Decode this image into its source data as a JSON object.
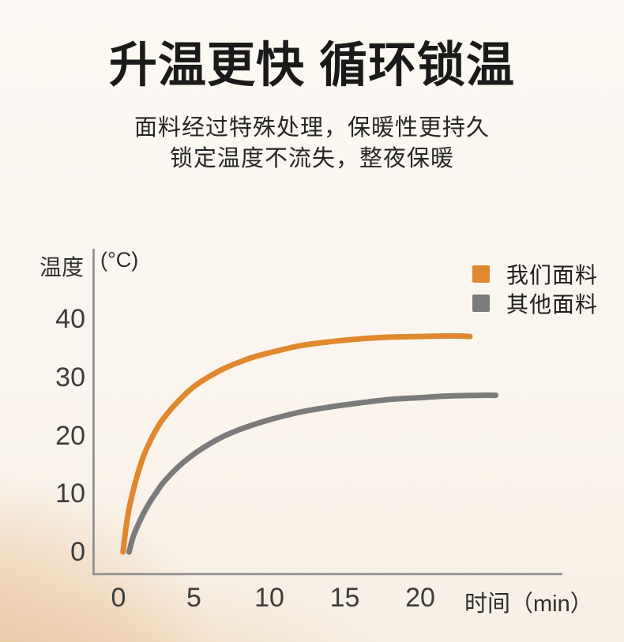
{
  "header": {
    "title": "升温更快 循环锁温",
    "subtitle_line1": "面料经过特殊处理，保暖性更持久",
    "subtitle_line2": "锁定温度不流失，整夜保暖"
  },
  "chart": {
    "y_axis_title": "温度",
    "y_axis_unit": "(°C)",
    "x_axis_title": "时间（min）"
  },
  "colors": {
    "accent_orange": "#E0882E",
    "gray": "#7B7B7B",
    "axis": "#8C8C8C",
    "background_cream": "#FBF6F0",
    "background_tan": "#ECD0B2"
  },
  "chart_data": {
    "type": "line",
    "title": "",
    "xlabel": "时间（min）",
    "ylabel": "温度 (°C)",
    "xlim": [
      0,
      25
    ],
    "ylim": [
      0,
      40
    ],
    "x_ticks": [
      0,
      5,
      10,
      15,
      20
    ],
    "y_ticks": [
      0,
      10,
      20,
      30,
      40
    ],
    "grid": false,
    "legend_position": "top-right",
    "series": [
      {
        "name": "我们面料",
        "color": "#E0882E",
        "x": [
          0.3,
          0.6,
          1.0,
          1.5,
          2,
          2.5,
          3,
          4,
          5,
          6,
          7,
          8,
          9,
          10,
          12,
          14,
          16,
          18,
          20,
          22,
          23.3
        ],
        "y": [
          0,
          6,
          10.8,
          15.3,
          18.5,
          21,
          23,
          26,
          28.4,
          30.1,
          31.5,
          32.6,
          33.5,
          34.2,
          35.4,
          36.1,
          36.6,
          36.9,
          37,
          37.1,
          37
        ]
      },
      {
        "name": "其他面料",
        "color": "#7B7B7B",
        "x": [
          0.7,
          1.0,
          1.5,
          2,
          2.5,
          3,
          4,
          5,
          6,
          7,
          8,
          9,
          10,
          12,
          14,
          16,
          18,
          20,
          22,
          24,
          25
        ],
        "y": [
          0,
          2.8,
          5.8,
          8.2,
          10.2,
          12,
          14.7,
          16.8,
          18.5,
          19.9,
          21,
          21.9,
          22.7,
          24,
          24.9,
          25.6,
          26.2,
          26.5,
          26.8,
          26.9,
          26.9
        ]
      }
    ]
  }
}
